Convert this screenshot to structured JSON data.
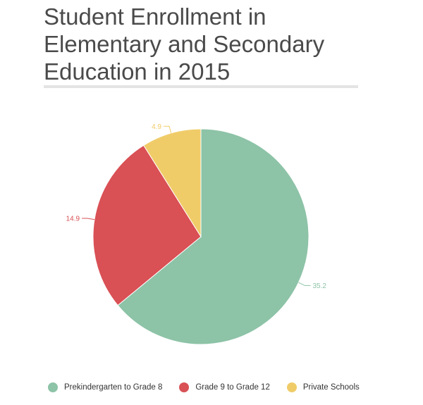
{
  "chart_data": {
    "type": "pie",
    "title": "Student Enrollment in Elementary and Secondary Education in 2015",
    "start_angle_deg": 0,
    "direction": "clockwise",
    "legend_position": "bottom",
    "slices": [
      {
        "label": "Prekindergarten to Grade 8",
        "value": 35.2,
        "value_label": "35.2",
        "color": "#8dc3a7"
      },
      {
        "label": "Grade 9 to Grade 12",
        "value": 14.9,
        "value_label": "14.9",
        "color": "#d95055"
      },
      {
        "label": "Private Schools",
        "value": 4.9,
        "value_label": "4.9",
        "color": "#f0cc69"
      }
    ]
  }
}
